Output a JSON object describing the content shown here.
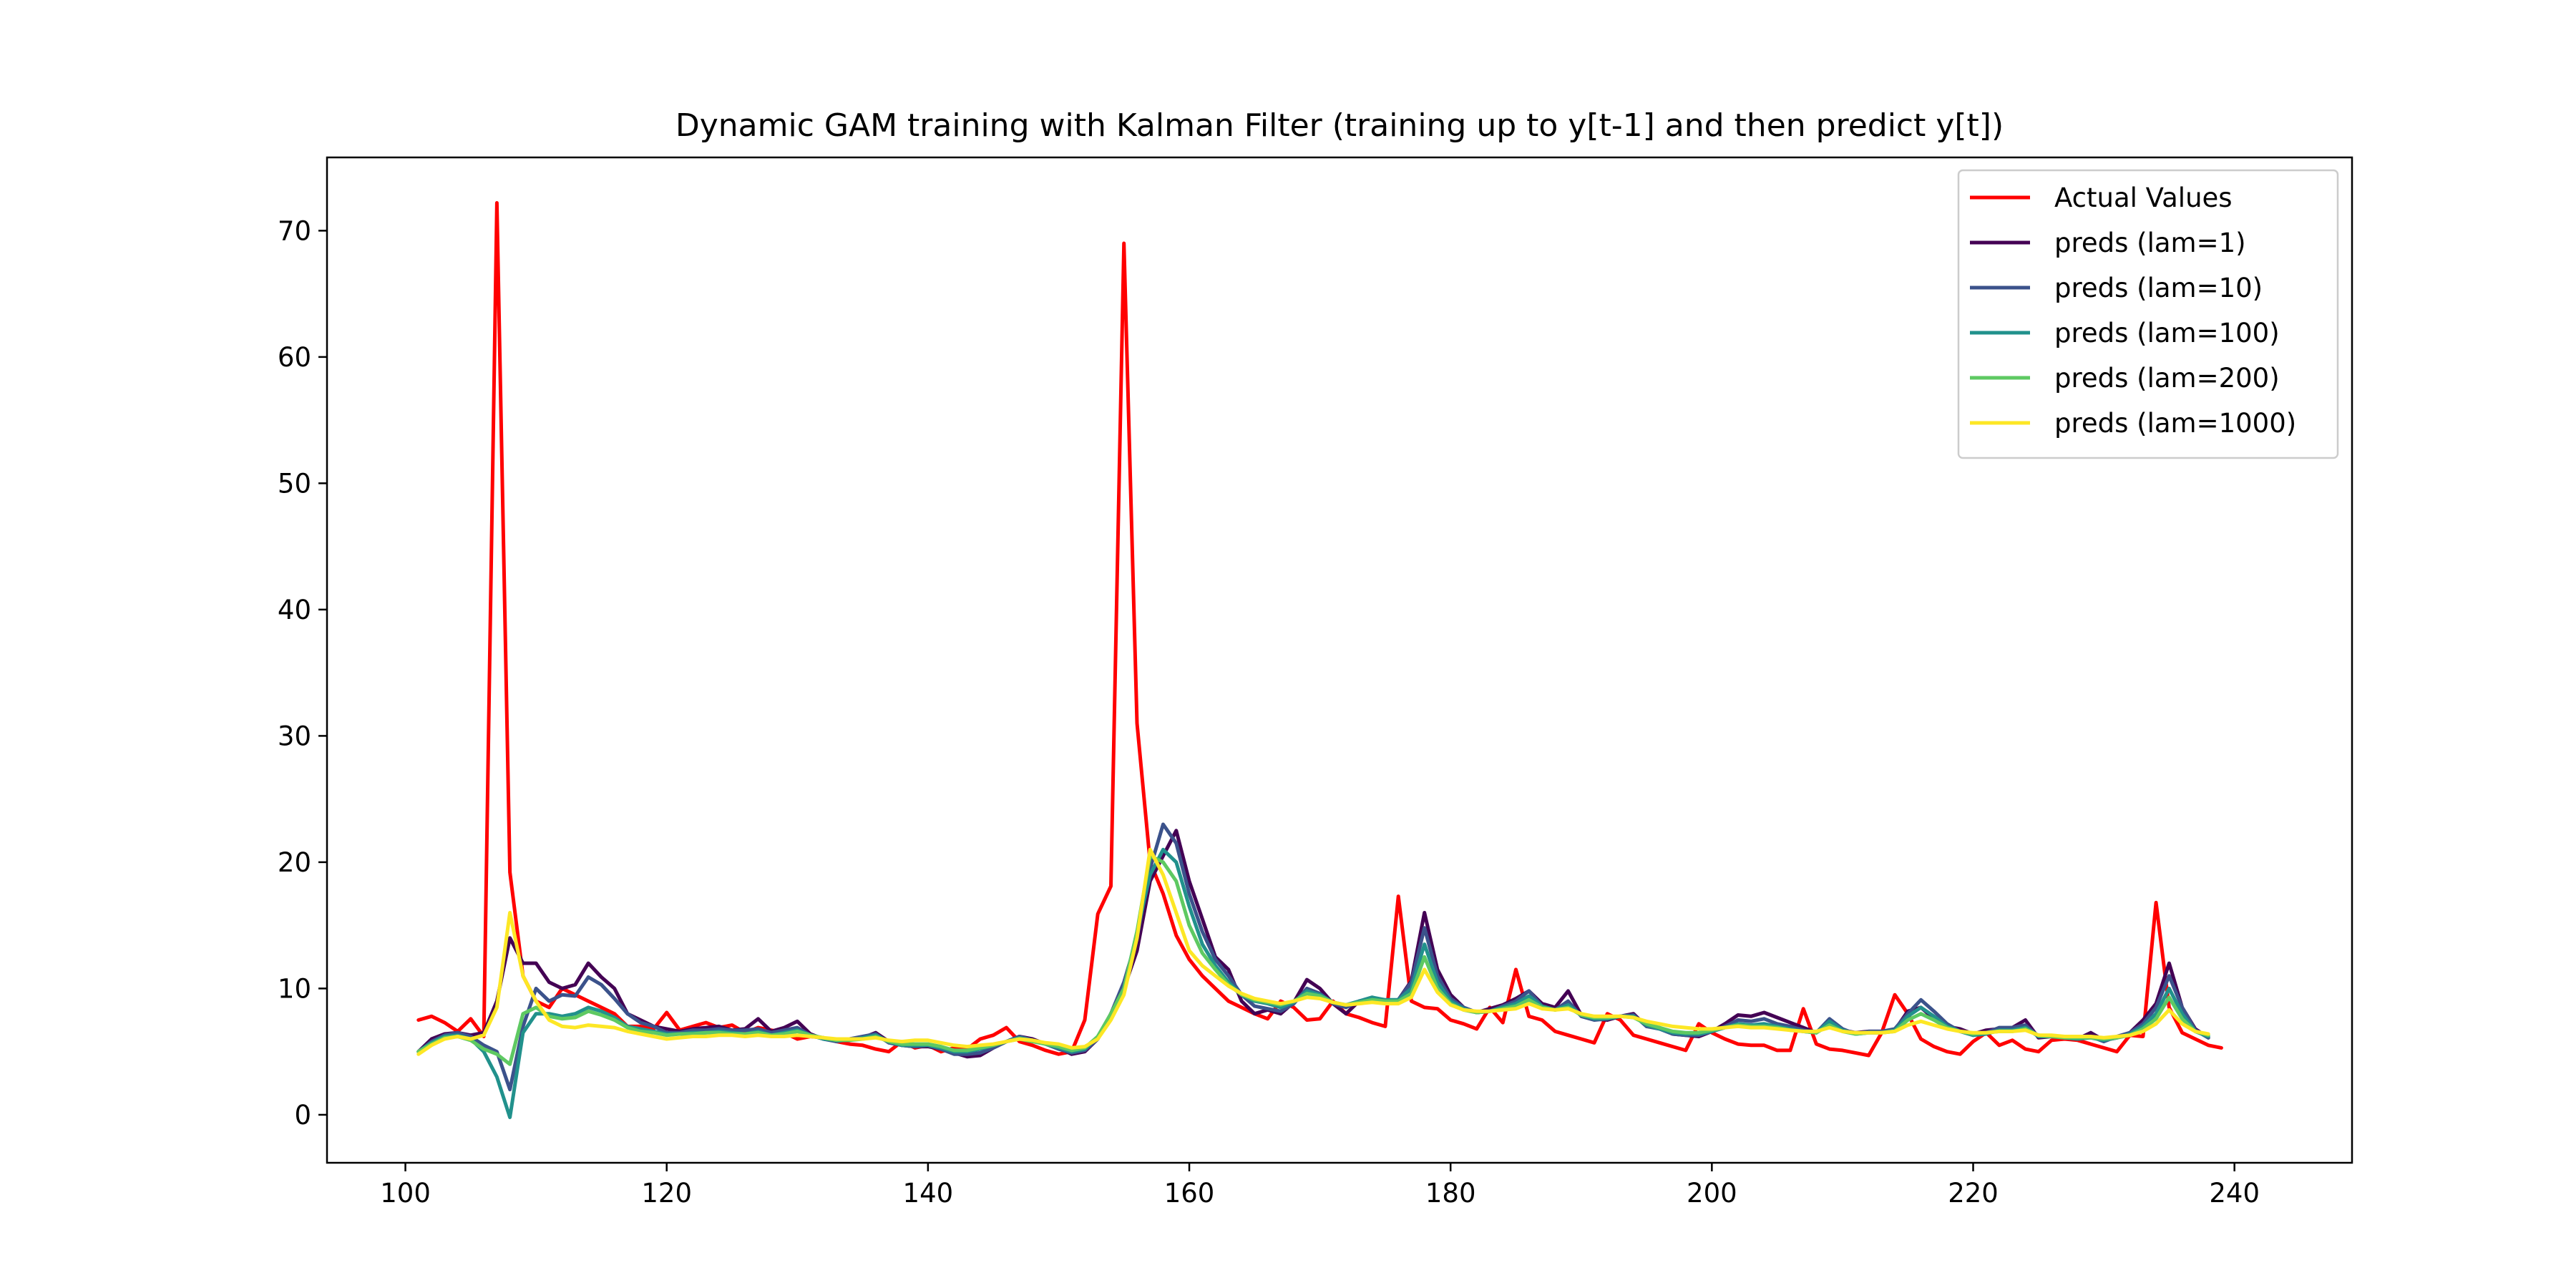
{
  "chart_data": {
    "type": "line",
    "title": "Dynamic GAM training with Kalman Filter (training up to y[t-1] and then predict y[t])",
    "xlabel": "",
    "ylabel": "",
    "xlim": [
      94,
      249
    ],
    "ylim": [
      -3.8,
      75.8
    ],
    "x_ticks": [
      100,
      120,
      140,
      160,
      180,
      200,
      220,
      240
    ],
    "y_ticks": [
      0,
      10,
      20,
      30,
      40,
      50,
      60,
      70
    ],
    "grid": false,
    "legend_position": "upper right",
    "x_start": 101,
    "series": [
      {
        "name": "Actual Values",
        "color": "#ff0000",
        "values": [
          7.5,
          7.8,
          7.3,
          6.6,
          7.6,
          6.2,
          72.2,
          19.2,
          11.0,
          9.0,
          8.5,
          10.0,
          9.5,
          9.0,
          8.5,
          8.0,
          7.0,
          7.0,
          6.8,
          8.1,
          6.7,
          7.0,
          7.3,
          6.9,
          7.1,
          6.5,
          6.9,
          6.7,
          6.5,
          6.0,
          6.2,
          6.1,
          5.8,
          5.6,
          5.5,
          5.2,
          5.0,
          5.8,
          5.3,
          5.5,
          5.0,
          5.3,
          5.2,
          6.0,
          6.3,
          6.9,
          5.8,
          5.5,
          5.1,
          4.8,
          5.0,
          7.5,
          15.9,
          18.1,
          69.0,
          31.0,
          20.0,
          17.5,
          14.2,
          12.3,
          11.0,
          10.0,
          9.0,
          8.5,
          8.0,
          7.6,
          9.0,
          8.5,
          7.5,
          7.6,
          9.0,
          8.0,
          7.7,
          7.3,
          7.0,
          17.3,
          9.0,
          8.5,
          8.4,
          7.5,
          7.2,
          6.8,
          8.5,
          7.3,
          11.5,
          7.8,
          7.5,
          6.6,
          6.3,
          6.0,
          5.7,
          8.0,
          7.5,
          6.3,
          6.0,
          5.7,
          5.4,
          5.1,
          7.2,
          6.5,
          6.0,
          5.6,
          5.5,
          5.5,
          5.1,
          5.1,
          8.4,
          5.6,
          5.2,
          5.1,
          4.9,
          4.7,
          6.5,
          9.5,
          8.0,
          6.0,
          5.4,
          5.0,
          4.8,
          5.8,
          6.5,
          5.5,
          5.9,
          5.2,
          5.0,
          5.9,
          6.0,
          5.9,
          5.6,
          5.3,
          5.0,
          6.3,
          6.2,
          16.8,
          8.5,
          6.5,
          6.0,
          5.5,
          5.3
        ]
      },
      {
        "name": "preds (lam=1)",
        "color": "#440154",
        "values": [
          5.0,
          6.0,
          6.4,
          6.5,
          6.3,
          6.5,
          9.0,
          14.0,
          12.0,
          12.0,
          10.5,
          10.0,
          10.3,
          12.0,
          10.9,
          10.0,
          8.0,
          7.5,
          7.0,
          6.8,
          6.6,
          6.8,
          6.9,
          7.0,
          6.7,
          6.8,
          7.6,
          6.6,
          6.9,
          7.4,
          6.4,
          6.0,
          5.9,
          6.0,
          6.1,
          6.5,
          5.8,
          5.5,
          5.4,
          5.4,
          5.2,
          4.9,
          4.6,
          4.7,
          5.3,
          5.8,
          6.2,
          6.0,
          5.6,
          5.3,
          4.8,
          5.0,
          6.0,
          8.0,
          10.0,
          13.0,
          18.5,
          20.5,
          22.5,
          18.5,
          15.5,
          12.5,
          11.5,
          9.0,
          8.0,
          8.3,
          8.0,
          8.9,
          10.7,
          10.0,
          8.8,
          8.0,
          9.0,
          9.2,
          9.0,
          9.1,
          10.6,
          16.0,
          11.5,
          9.5,
          8.5,
          8.1,
          8.4,
          8.7,
          9.2,
          9.8,
          8.8,
          8.5,
          9.8,
          7.9,
          7.6,
          7.5,
          7.8,
          8.0,
          7.0,
          6.9,
          6.4,
          6.3,
          6.2,
          6.6,
          7.2,
          7.9,
          7.8,
          8.1,
          7.7,
          7.3,
          6.9,
          6.5,
          7.4,
          6.7,
          6.5,
          6.6,
          6.6,
          6.7,
          8.2,
          8.5,
          7.6,
          7.0,
          6.8,
          6.4,
          6.7,
          6.8,
          6.9,
          7.5,
          6.1,
          6.2,
          6.1,
          6.0,
          6.5,
          5.9,
          6.1,
          6.5,
          7.5,
          8.8,
          12.0,
          8.5,
          6.8,
          6.1
        ]
      },
      {
        "name": "preds (lam=10)",
        "color": "#3b528b",
        "values": [
          5.0,
          5.8,
          6.3,
          6.5,
          6.2,
          5.5,
          5.0,
          2.0,
          7.0,
          10.0,
          9.0,
          9.5,
          9.4,
          10.9,
          10.3,
          9.2,
          8.0,
          7.3,
          7.0,
          6.5,
          6.5,
          6.7,
          6.7,
          6.8,
          6.7,
          6.7,
          6.8,
          6.5,
          6.7,
          6.9,
          6.3,
          6.0,
          5.8,
          6.0,
          6.2,
          6.4,
          5.7,
          5.5,
          5.4,
          5.5,
          5.2,
          4.8,
          4.8,
          4.9,
          5.3,
          5.8,
          6.2,
          5.9,
          5.6,
          5.2,
          4.9,
          5.1,
          6.0,
          8.0,
          10.5,
          14.0,
          19.5,
          23.0,
          21.5,
          17.5,
          14.5,
          12.3,
          11.0,
          9.5,
          8.6,
          8.4,
          8.2,
          8.8,
          10.0,
          9.6,
          8.8,
          8.5,
          9.0,
          9.3,
          9.0,
          9.1,
          10.5,
          14.8,
          11.0,
          9.2,
          8.5,
          8.1,
          8.2,
          8.6,
          9.0,
          9.8,
          8.6,
          8.3,
          9.0,
          7.8,
          7.5,
          7.6,
          7.8,
          7.9,
          7.0,
          6.8,
          6.4,
          6.3,
          6.3,
          6.6,
          7.0,
          7.5,
          7.4,
          7.6,
          7.2,
          7.0,
          6.7,
          6.5,
          7.6,
          6.8,
          6.4,
          6.6,
          6.6,
          6.8,
          8.0,
          9.1,
          8.2,
          7.2,
          6.6,
          6.3,
          6.5,
          6.9,
          6.9,
          7.1,
          6.2,
          6.2,
          6.1,
          6.0,
          6.2,
          5.8,
          6.2,
          6.5,
          7.2,
          8.5,
          11.0,
          8.5,
          6.7,
          6.1
        ]
      },
      {
        "name": "preds (lam=100)",
        "color": "#21918c",
        "values": [
          5.0,
          5.7,
          6.2,
          6.3,
          6.0,
          5.0,
          3.0,
          -0.2,
          6.5,
          8.0,
          8.0,
          7.8,
          8.0,
          8.5,
          8.2,
          7.7,
          7.0,
          6.8,
          6.6,
          6.4,
          6.4,
          6.5,
          6.5,
          6.6,
          6.5,
          6.4,
          6.6,
          6.3,
          6.5,
          6.7,
          6.3,
          6.0,
          5.9,
          5.9,
          6.1,
          6.3,
          5.8,
          5.5,
          5.5,
          5.5,
          5.3,
          5.0,
          5.0,
          5.2,
          5.5,
          5.8,
          6.1,
          5.9,
          5.6,
          5.3,
          5.0,
          5.2,
          6.2,
          8.0,
          10.0,
          14.5,
          19.0,
          21.0,
          20.0,
          16.5,
          13.5,
          11.8,
          10.5,
          9.5,
          9.0,
          8.8,
          8.5,
          8.9,
          9.8,
          9.5,
          8.9,
          8.7,
          9.0,
          9.3,
          9.1,
          9.1,
          10.0,
          13.5,
          10.5,
          9.0,
          8.4,
          8.1,
          8.2,
          8.5,
          8.8,
          9.4,
          8.6,
          8.3,
          8.7,
          7.9,
          7.6,
          7.6,
          7.8,
          7.8,
          7.1,
          6.8,
          6.5,
          6.4,
          6.4,
          6.6,
          6.9,
          7.2,
          7.1,
          7.2,
          7.0,
          6.8,
          6.6,
          6.5,
          7.4,
          6.7,
          6.4,
          6.5,
          6.5,
          6.7,
          7.8,
          8.5,
          7.8,
          7.0,
          6.6,
          6.3,
          6.4,
          6.7,
          6.7,
          6.9,
          6.2,
          6.2,
          6.1,
          6.0,
          6.1,
          5.9,
          6.1,
          6.4,
          7.0,
          8.0,
          10.0,
          8.0,
          6.6,
          6.2
        ]
      },
      {
        "name": "preds (lam=200)",
        "color": "#5ec962",
        "values": [
          5.0,
          5.6,
          6.1,
          6.2,
          5.9,
          5.2,
          4.8,
          4.0,
          8.0,
          8.5,
          7.8,
          7.6,
          7.7,
          8.2,
          7.9,
          7.5,
          6.9,
          6.6,
          6.5,
          6.3,
          6.4,
          6.4,
          6.5,
          6.5,
          6.4,
          6.4,
          6.5,
          6.3,
          6.4,
          6.6,
          6.3,
          6.1,
          5.9,
          5.9,
          6.0,
          6.2,
          5.8,
          5.6,
          5.6,
          5.6,
          5.4,
          5.1,
          5.1,
          5.3,
          5.5,
          5.8,
          6.0,
          5.8,
          5.6,
          5.4,
          5.1,
          5.3,
          6.2,
          8.0,
          10.0,
          14.5,
          20.5,
          20.0,
          18.5,
          15.0,
          12.8,
          11.5,
          10.3,
          9.5,
          9.1,
          8.9,
          8.7,
          9.0,
          9.6,
          9.4,
          8.9,
          8.7,
          8.9,
          9.1,
          9.0,
          9.0,
          9.6,
          12.5,
          10.0,
          8.8,
          8.3,
          8.1,
          8.2,
          8.4,
          8.6,
          9.1,
          8.5,
          8.3,
          8.5,
          7.9,
          7.7,
          7.7,
          7.8,
          7.7,
          7.2,
          6.9,
          6.6,
          6.5,
          6.5,
          6.7,
          6.9,
          7.1,
          7.0,
          7.0,
          6.9,
          6.7,
          6.6,
          6.5,
          7.1,
          6.6,
          6.4,
          6.5,
          6.5,
          6.6,
          7.5,
          8.0,
          7.5,
          6.9,
          6.6,
          6.4,
          6.5,
          6.6,
          6.6,
          6.8,
          6.3,
          6.2,
          6.1,
          6.1,
          6.1,
          6.0,
          6.1,
          6.3,
          6.8,
          7.6,
          9.3,
          7.6,
          6.6,
          6.3
        ]
      },
      {
        "name": "preds (lam=1000)",
        "color": "#fde725",
        "values": [
          4.8,
          5.5,
          6.0,
          6.2,
          6.0,
          6.3,
          8.5,
          16.0,
          11.0,
          9.0,
          7.5,
          7.0,
          6.9,
          7.1,
          7.0,
          6.9,
          6.6,
          6.4,
          6.2,
          6.0,
          6.1,
          6.2,
          6.2,
          6.3,
          6.3,
          6.2,
          6.3,
          6.2,
          6.2,
          6.3,
          6.2,
          6.1,
          6.0,
          6.0,
          6.0,
          6.1,
          5.9,
          5.8,
          5.9,
          5.9,
          5.7,
          5.5,
          5.4,
          5.5,
          5.6,
          5.8,
          6.0,
          5.9,
          5.7,
          5.6,
          5.3,
          5.4,
          6.0,
          7.5,
          9.5,
          14.0,
          21.0,
          19.0,
          16.0,
          13.0,
          11.8,
          11.0,
          10.2,
          9.6,
          9.2,
          9.0,
          8.8,
          9.0,
          9.3,
          9.2,
          8.9,
          8.7,
          8.8,
          8.9,
          8.8,
          8.8,
          9.3,
          11.5,
          9.7,
          8.7,
          8.3,
          8.2,
          8.2,
          8.3,
          8.4,
          8.8,
          8.4,
          8.3,
          8.4,
          8.0,
          7.8,
          7.8,
          7.8,
          7.7,
          7.4,
          7.2,
          7.0,
          6.9,
          6.8,
          6.8,
          6.9,
          7.0,
          6.9,
          6.9,
          6.8,
          6.7,
          6.6,
          6.6,
          6.9,
          6.6,
          6.5,
          6.5,
          6.5,
          6.6,
          7.1,
          7.4,
          7.1,
          6.8,
          6.6,
          6.5,
          6.5,
          6.6,
          6.6,
          6.7,
          6.3,
          6.3,
          6.2,
          6.2,
          6.2,
          6.1,
          6.2,
          6.3,
          6.6,
          7.2,
          8.3,
          7.2,
          6.6,
          6.4
        ]
      }
    ]
  }
}
